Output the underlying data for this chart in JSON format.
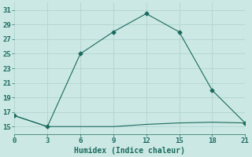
{
  "xlabel": "Humidex (Indice chaleur)",
  "bg_color": "#cce8e4",
  "grid_color": "#b0d4d0",
  "line_color": "#1a6b5e",
  "x_line1": [
    0,
    3,
    6,
    9,
    12,
    15,
    18,
    21
  ],
  "y_line1": [
    16.5,
    15.0,
    25.0,
    28.0,
    30.5,
    28.0,
    20.0,
    15.5
  ],
  "x_line2": [
    0,
    3,
    6,
    9,
    12,
    15,
    18,
    21
  ],
  "y_line2": [
    16.5,
    15.0,
    15.0,
    15.0,
    15.3,
    15.5,
    15.6,
    15.5
  ],
  "xlim": [
    0,
    21
  ],
  "ylim": [
    14.0,
    32.0
  ],
  "xticks": [
    0,
    3,
    6,
    9,
    12,
    15,
    18,
    21
  ],
  "yticks": [
    15,
    17,
    19,
    21,
    23,
    25,
    27,
    29,
    31
  ],
  "marker": "D",
  "marker_size": 2.5,
  "linewidth": 0.8,
  "font_family": "monospace",
  "xlabel_fontsize": 7,
  "tick_fontsize": 6.5
}
